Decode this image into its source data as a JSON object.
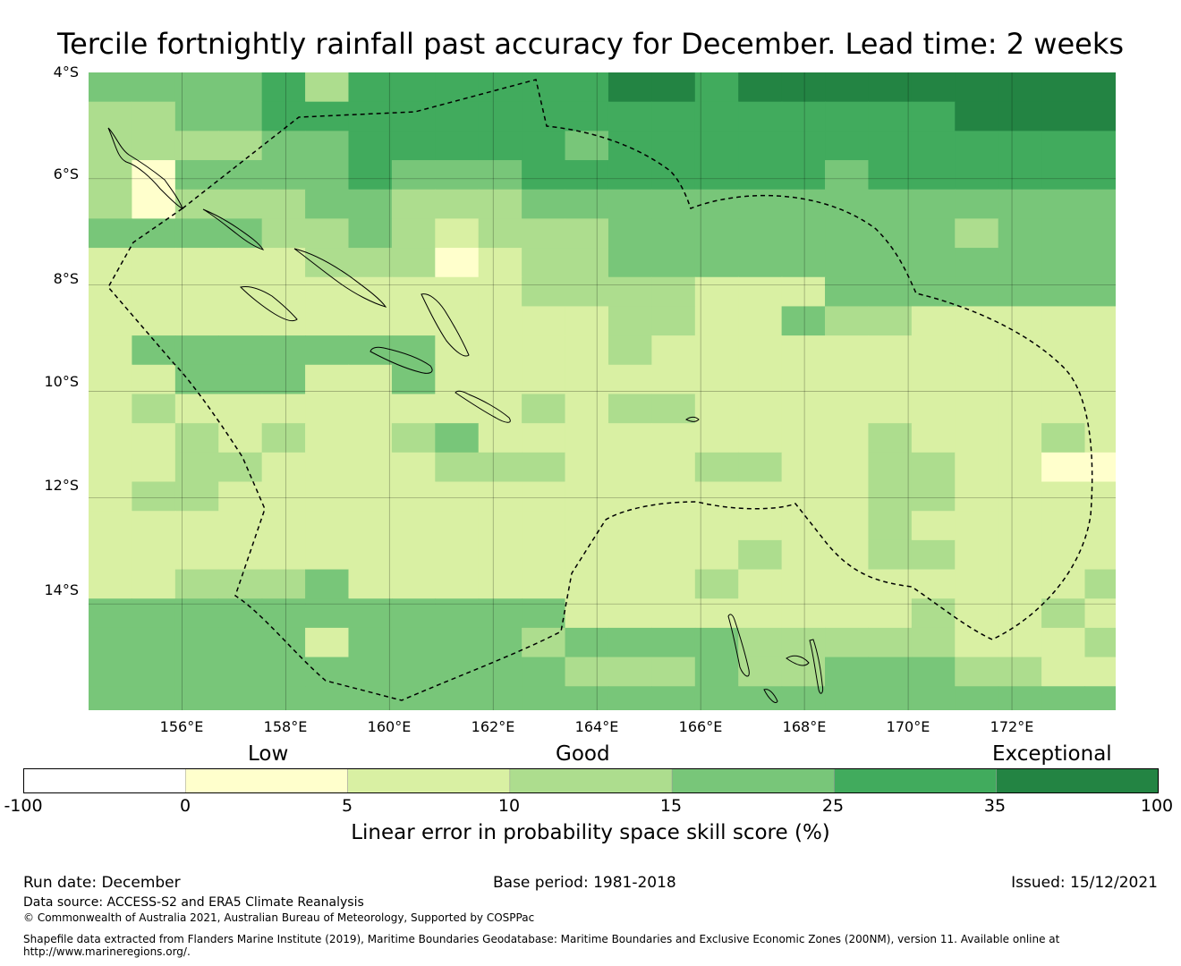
{
  "title": "Tercile fortnightly rainfall past accuracy for December. Lead time: 2 weeks",
  "map": {
    "lon_range": [
      154.2,
      174.0
    ],
    "lat_range": [
      -16.0,
      -4.0
    ],
    "lat_labels": [
      "4°S",
      "6°S",
      "8°S",
      "10°S",
      "12°S",
      "14°S"
    ],
    "lon_labels": [
      "156°E",
      "158°E",
      "160°E",
      "162°E",
      "164°E",
      "166°E",
      "168°E",
      "170°E",
      "172°E"
    ],
    "grid": {
      "lon_start": 154.2,
      "lon_step": 0.835,
      "cols": 24,
      "lat_start": -4.0,
      "lat_step": 0.55,
      "rows": 22,
      "note": "Cell classes 0..6 map to colorbar bins (0 = -100..0, 1 = 0..5, 2 = 5..10, 3 = 10..15, 4 = 15..25, 5 = 25..35, 6 = 35..100)",
      "values": [
        "444453555555665666666666",
        "334455555555555555556666",
        "333344555554555555555555",
        "314444544455555554555555",
        "313334433344444444444444",
        "444433432333444444443444",
        "222223331233444444444444",
        "222222222233332224444444",
        "222222222222332243322222",
        "244444442222322222222222",
        "224442242222222222222222",
        "232222222232332222222222",
        "223232234222222222322232",
        "223322223332223322332211",
        "233222222222222222332222",
        "222222222222222222322222",
        "222222222222222322332222",
        "223334222222223222222223",
        "444444444442222222232232",
        "444442444434444333332223",
        "444444444443334334443322",
        "444444444444444444444444"
      ]
    }
  },
  "colorbar": {
    "categories": [
      "Low",
      "Good",
      "Exceptional"
    ],
    "ticks": [
      "-100",
      "0",
      "5",
      "10",
      "15",
      "25",
      "35",
      "100"
    ],
    "colors": [
      "#ffffff",
      "#ffffcc",
      "#d9f0a3",
      "#addd8e",
      "#78c679",
      "#41ab5d",
      "#238443"
    ],
    "label": "Linear error in probability space skill score (%)"
  },
  "footer": {
    "run_date": "Run date: December",
    "base_period": "Base period: 1981-2018",
    "issued": "Issued: 15/12/2021",
    "data_source": "Data source: ACCESS-S2 and ERA5 Climate Reanalysis",
    "copyright": "© Commonwealth of Australia 2021, Australian Bureau of Meteorology, Supported by COSPPac",
    "shapefile_line1": "Shapefile data extracted from Flanders Marine Institute (2019), Maritime Boundaries Geodatabase: Maritime Boundaries and Exclusive Economic Zones (200NM), version 11. Available online at",
    "shapefile_line2": "http://www.marineregions.org/."
  }
}
